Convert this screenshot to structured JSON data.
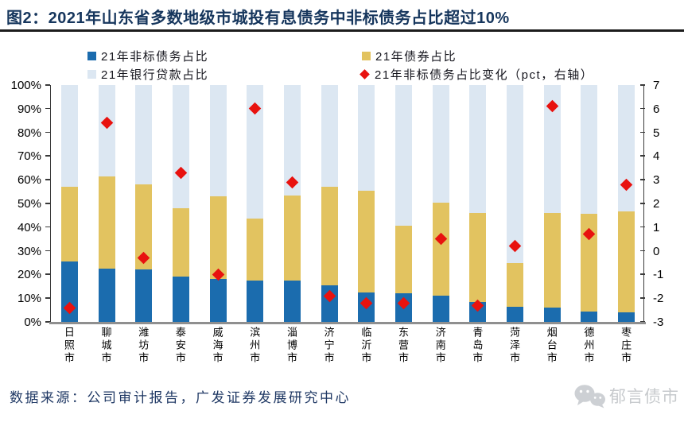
{
  "title": "图2：2021年山东省多数地级市城投有息债务中非标债务占比超过10%",
  "footer": {
    "source": "数据来源：公司审计报告，广发证券发展研究中心",
    "watermark": "郁言债市"
  },
  "colors": {
    "title_text": "#16365D",
    "title_rule": "#1c1c1c",
    "footer_text": "#1F3864",
    "axis_line": "#3a3a3a",
    "x_axis_line": "#8f8f8f",
    "watermark_gray": "#c7cacd"
  },
  "chart_data": {
    "type": "bar",
    "subtype": "stacked-bar-with-scatter-overlay",
    "title": "",
    "categories": [
      "日照市",
      "聊城市",
      "潍坊市",
      "泰安市",
      "威海市",
      "滨州市",
      "淄博市",
      "济宁市",
      "临沂市",
      "东营市",
      "济南市",
      "青岛市",
      "菏泽市",
      "烟台市",
      "德州市",
      "枣庄市"
    ],
    "series": [
      {
        "name": "21年非标债务占比",
        "type": "stacked-bar",
        "color": "#1B6CAE",
        "axis": "left",
        "values": [
          25.5,
          22.5,
          22,
          19,
          18,
          17.5,
          17.3,
          15.3,
          12.5,
          12,
          11,
          8.5,
          6.5,
          6,
          4.5,
          4
        ]
      },
      {
        "name": "21年债券占比",
        "type": "stacked-bar",
        "color": "#E2C360",
        "axis": "left",
        "values": [
          31.5,
          39,
          36,
          29,
          35,
          26,
          36.2,
          41.7,
          43,
          28.5,
          39.5,
          37.5,
          18.5,
          40,
          41,
          42.5
        ]
      },
      {
        "name": "21年银行贷款占比",
        "type": "stacked-bar",
        "color": "#DCE7F2",
        "axis": "left",
        "values": [
          43,
          38.5,
          42,
          52,
          47,
          56.5,
          46.5,
          43,
          44.5,
          59.5,
          49.5,
          54,
          75,
          54,
          54.5,
          53.5
        ]
      },
      {
        "name": "21年非标债务占比变化（pct，右轴）",
        "type": "scatter",
        "color": "#E8120F",
        "axis": "right",
        "values": [
          -2.4,
          5.4,
          -0.3,
          3.3,
          -1.0,
          6.0,
          2.9,
          -1.9,
          -2.2,
          -2.2,
          0.5,
          -2.3,
          0.2,
          6.1,
          0.7,
          2.8
        ]
      }
    ],
    "left_axis": {
      "min": 0,
      "max": 100,
      "unit": "%",
      "tick_labels": [
        "0%",
        "10%",
        "20%",
        "30%",
        "40%",
        "50%",
        "60%",
        "70%",
        "80%",
        "90%",
        "100%"
      ]
    },
    "right_axis": {
      "min": -3,
      "max": 7,
      "tick_values": [
        7,
        6,
        5,
        4,
        3,
        2,
        1,
        0,
        -1,
        -2,
        -3
      ]
    },
    "grid": false,
    "legend_position": "top"
  }
}
